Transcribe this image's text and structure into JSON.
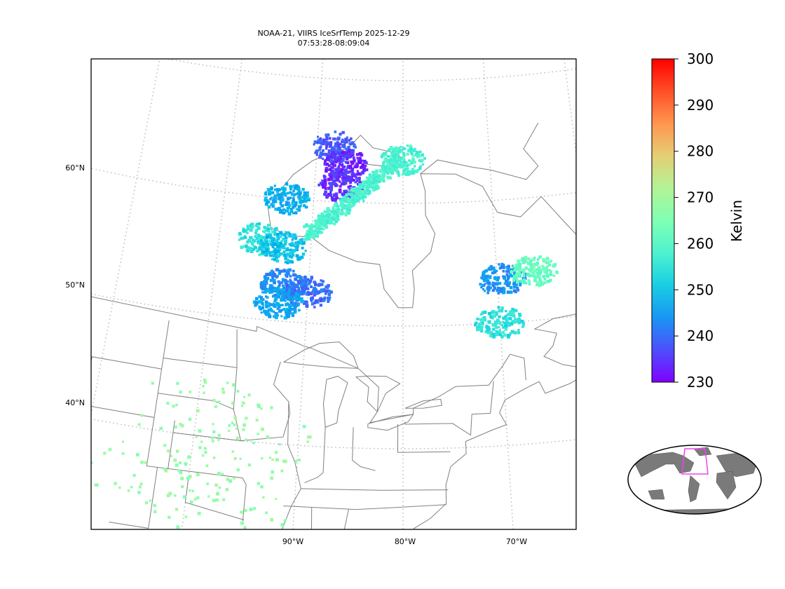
{
  "title_line1": "NOAA-21, VIIRS IceSrfTemp 2025-12-29",
  "title_line2": "07:53:28-08:09:04",
  "colorbar": {
    "label": "Kelvin",
    "min": 230,
    "max": 300,
    "colormap": "rainbow",
    "ticks": [
      "230",
      "240",
      "250",
      "260",
      "270",
      "280",
      "290",
      "300"
    ]
  },
  "lat_labels": [
    {
      "lat": 60,
      "text": "60°N"
    },
    {
      "lat": 50,
      "text": "50°N"
    },
    {
      "lat": 40,
      "text": "40°N"
    }
  ],
  "lon_labels": [
    {
      "lon": -90,
      "text": "90°W"
    },
    {
      "lon": -80,
      "text": "80°W"
    },
    {
      "lon": -70,
      "text": "70°W"
    }
  ],
  "colors": {
    "coastline": "#808080",
    "graticule": "#bbbbbb",
    "inset_land": "#7a7a7a",
    "inset_box": "#ee44ee"
  },
  "chart_data": {
    "type": "scatter",
    "variable": "Ice surface temperature (K)",
    "clusters": [
      {
        "lon": -88,
        "lat": 64.5,
        "temp": 238
      },
      {
        "lon": -86.5,
        "lat": 63,
        "temp": 233
      },
      {
        "lon": -87,
        "lat": 61.3,
        "temp": 234
      },
      {
        "lon": -93,
        "lat": 60,
        "temp": 247
      },
      {
        "lon": -95.5,
        "lat": 56.5,
        "temp": 254
      },
      {
        "lon": -93,
        "lat": 56,
        "temp": 249
      },
      {
        "lon": -92.5,
        "lat": 53,
        "temp": 243
      },
      {
        "lon": -90,
        "lat": 52.5,
        "temp": 240
      },
      {
        "lon": -93,
        "lat": 51.5,
        "temp": 246
      },
      {
        "lon": -80,
        "lat": 63.5,
        "temp": 258
      },
      {
        "lon": -69.5,
        "lat": 53.5,
        "temp": 244
      },
      {
        "lon": -70,
        "lat": 50,
        "temp": 254
      },
      {
        "lon": -66,
        "lat": 54,
        "temp": 262
      },
      {
        "lon": -100,
        "lat": 42,
        "temp": 268
      },
      {
        "lon": -95,
        "lat": 40,
        "temp": 268
      },
      {
        "lon": -97,
        "lat": 34,
        "temp": 268
      },
      {
        "lon": -103,
        "lat": 36,
        "temp": 268
      }
    ],
    "coastal_strip": {
      "from": {
        "lon": -90.5,
        "lat": 57
      },
      "to": {
        "lon": -80.5,
        "lat": 63.3
      },
      "temp": 258
    }
  }
}
